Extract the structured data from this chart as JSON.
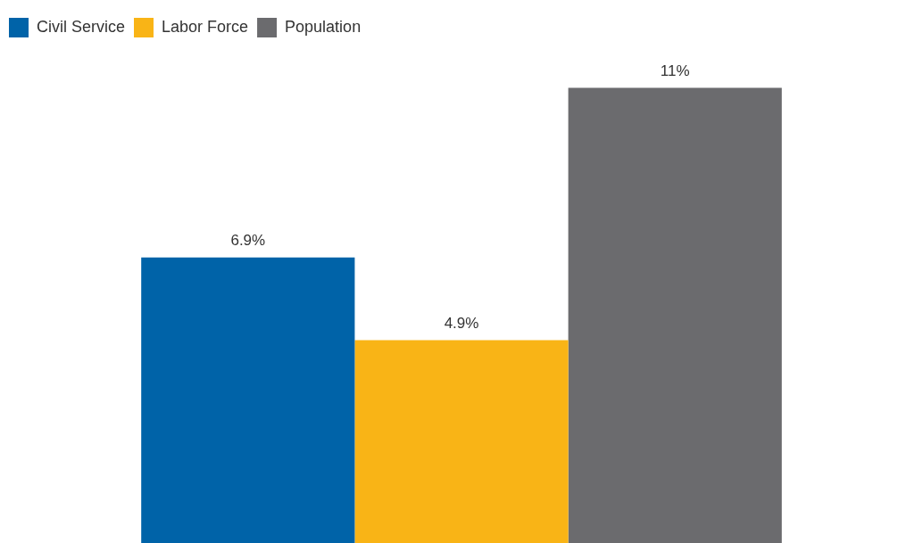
{
  "chart_data": {
    "type": "bar",
    "categories": [
      null
    ],
    "legend": "top left",
    "series": [
      {
        "name": "Civil Service",
        "color": "#0063a8",
        "values": [
          6.9
        ],
        "value_labels": [
          "6.9%"
        ]
      },
      {
        "name": "Labor Force",
        "color": "#f9b416",
        "values": [
          4.9
        ],
        "value_labels": [
          "4.9%"
        ]
      },
      {
        "name": "Population",
        "color": "#6b6b6e",
        "values": [
          11
        ],
        "value_labels": [
          "11%"
        ]
      }
    ]
  }
}
